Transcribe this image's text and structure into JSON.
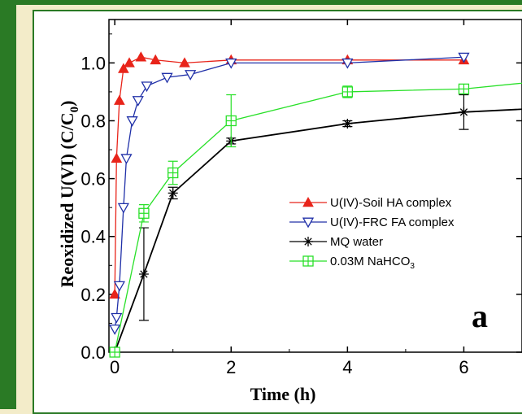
{
  "chart_data": {
    "type": "line",
    "xlabel": "Time (h)",
    "ylabel": "Reoxidized U(VI) (C/C",
    "ylabel_subscript": "0",
    "ylabel_close": ")",
    "panel_label": "a",
    "xlim": [
      -0.1,
      7
    ],
    "ylim": [
      0.0,
      1.15
    ],
    "x_ticks": [
      0,
      2,
      4,
      6
    ],
    "y_ticks": [
      0.0,
      0.2,
      0.4,
      0.6,
      0.8,
      1.0
    ],
    "x_tick_labels": [
      "0",
      "2",
      "4",
      "6"
    ],
    "y_tick_labels": [
      "0.0",
      "0.2",
      "0.4",
      "0.6",
      "0.8",
      "1.0"
    ],
    "legend_position": "center-right",
    "series": [
      {
        "name": "U(IV)-Soil HA complex",
        "color": "#e8241a",
        "marker": "filled-triangle-up",
        "x": [
          0,
          0.03,
          0.08,
          0.15,
          0.25,
          0.45,
          0.7,
          1.2,
          2,
          4,
          6
        ],
        "y": [
          0.2,
          0.67,
          0.87,
          0.98,
          1.0,
          1.02,
          1.01,
          1.0,
          1.01,
          1.01,
          1.01
        ],
        "err": [
          0,
          0,
          0,
          0,
          0,
          0,
          0,
          0,
          0,
          0,
          0
        ]
      },
      {
        "name": "U(IV)-FRC FA complex",
        "color": "#2030a8",
        "marker": "open-triangle-down",
        "x": [
          0,
          0.03,
          0.08,
          0.15,
          0.2,
          0.3,
          0.4,
          0.55,
          0.9,
          1.3,
          2,
          4,
          6
        ],
        "y": [
          0.08,
          0.12,
          0.23,
          0.5,
          0.67,
          0.8,
          0.87,
          0.92,
          0.95,
          0.96,
          1.0,
          1.0,
          1.02
        ],
        "err": [
          0,
          0,
          0,
          0,
          0,
          0,
          0,
          0,
          0,
          0,
          0,
          0,
          0
        ]
      },
      {
        "name": "MQ water",
        "color": "#000000",
        "marker": "star",
        "x": [
          0,
          0.5,
          1,
          2,
          4,
          6,
          7
        ],
        "y": [
          0.0,
          0.27,
          0.55,
          0.73,
          0.79,
          0.83,
          0.84
        ],
        "err": [
          0,
          0.16,
          0.02,
          0.01,
          0.01,
          0.06,
          0
        ],
        "marker_points": 6
      },
      {
        "name": "0.03M NaHCO",
        "name_subscript": "3",
        "color": "#28e028",
        "marker": "open-square-plus",
        "x": [
          0,
          0.5,
          1,
          2,
          4,
          6,
          7
        ],
        "y": [
          0.0,
          0.48,
          0.62,
          0.8,
          0.9,
          0.91,
          0.93
        ],
        "err": [
          0,
          0.03,
          0.04,
          0.09,
          0.02,
          0.01,
          0
        ],
        "marker_points": 6
      }
    ]
  }
}
